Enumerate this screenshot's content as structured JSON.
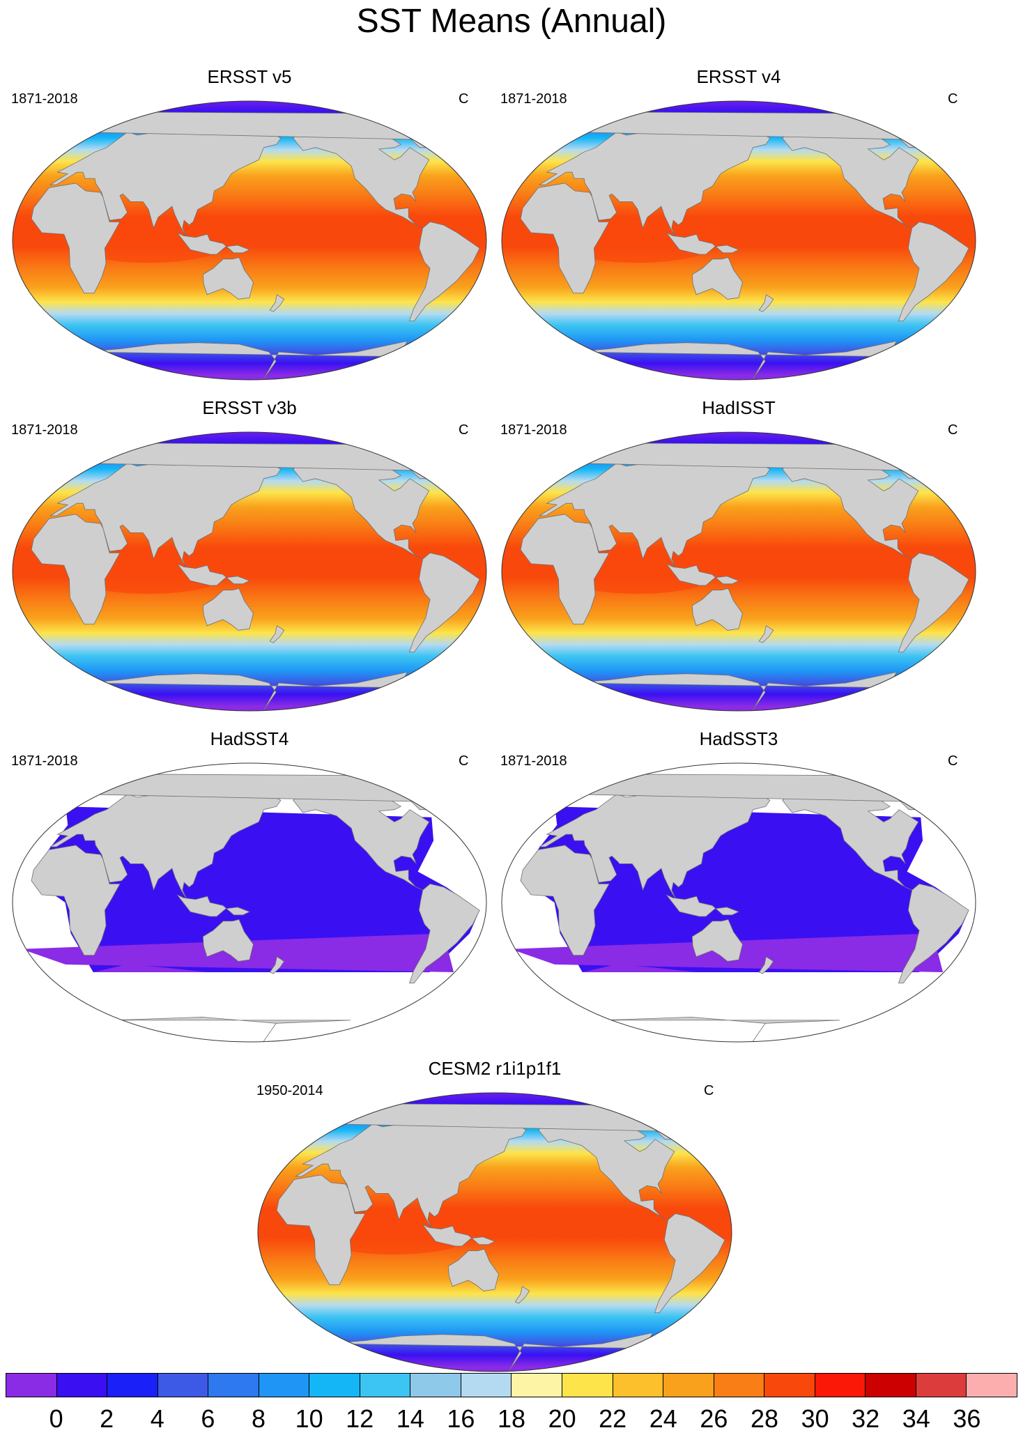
{
  "title": "SST Means (Annual)",
  "unit": "C",
  "panels": [
    {
      "title": "ERSST v5",
      "years": "1871-2018",
      "kind": "full"
    },
    {
      "title": "ERSST v4",
      "years": "1871-2018",
      "kind": "full"
    },
    {
      "title": "ERSST v3b",
      "years": "1871-2018",
      "kind": "full"
    },
    {
      "title": "HadISST",
      "years": "1871-2018",
      "kind": "full"
    },
    {
      "title": "HadSST4",
      "years": "1871-2018",
      "kind": "sparse"
    },
    {
      "title": "HadSST3",
      "years": "1871-2018",
      "kind": "sparse"
    },
    {
      "title": "CESM2 r1i1p1f1",
      "years": "1950-2014",
      "kind": "full"
    }
  ],
  "colorbar": {
    "labels": [
      "0",
      "2",
      "4",
      "6",
      "8",
      "10",
      "12",
      "14",
      "16",
      "18",
      "20",
      "22",
      "24",
      "26",
      "28",
      "30",
      "32",
      "34",
      "36"
    ],
    "colors": [
      "#8a2be6",
      "#3a10f2",
      "#1a20f8",
      "#3c5ae6",
      "#2e78f0",
      "#1f96f5",
      "#14b6f6",
      "#3cc4f2",
      "#8ec9ea",
      "#b4daf2",
      "#fdf4a6",
      "#fde44a",
      "#fbc02c",
      "#f9a11c",
      "#f97e16",
      "#f9480c",
      "#fc1806",
      "#cc0000",
      "#dc3c3c",
      "#fcaeae"
    ],
    "land": "#cfcfcf",
    "missing": "#ffffff"
  }
}
